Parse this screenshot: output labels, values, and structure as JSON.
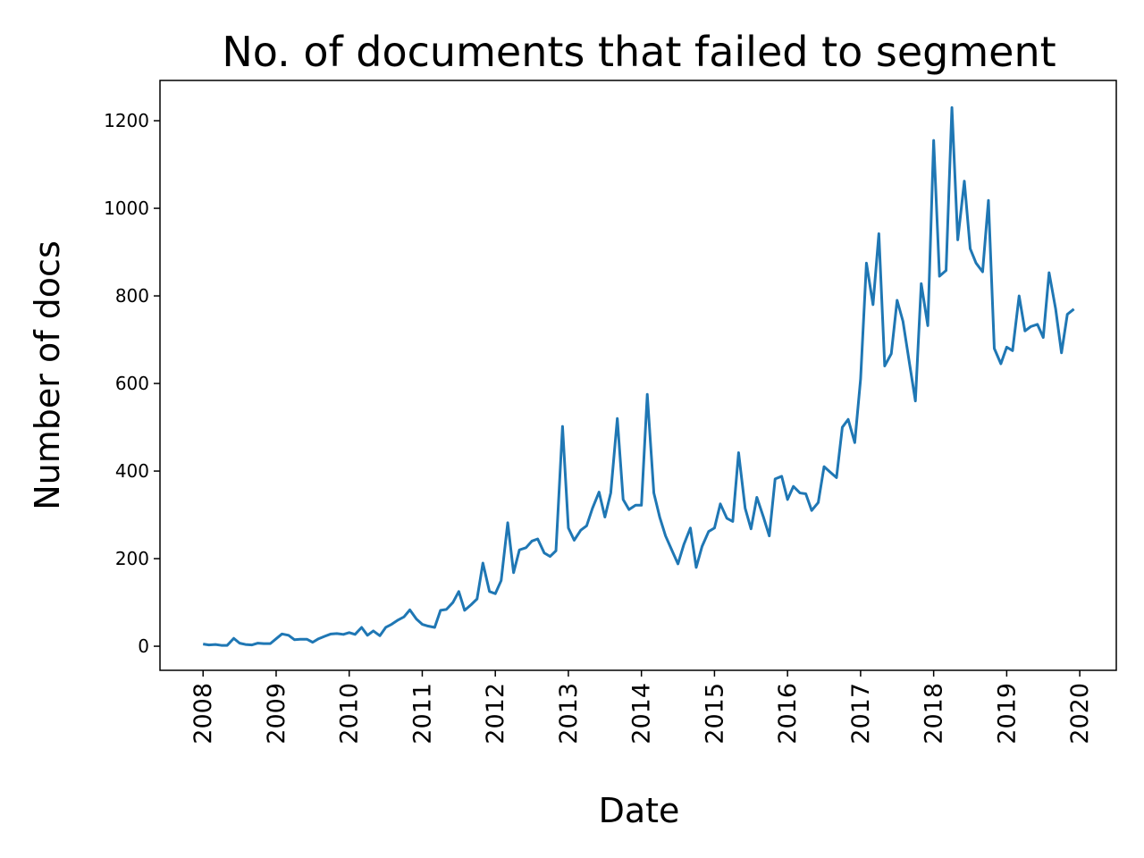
{
  "chart_data": {
    "type": "line",
    "title": "No. of documents that failed to segment",
    "xlabel": "Date",
    "ylabel": "Number of docs",
    "x": [
      2008.0,
      2008.08,
      2008.17,
      2008.25,
      2008.33,
      2008.42,
      2008.5,
      2008.58,
      2008.67,
      2008.75,
      2008.83,
      2008.92,
      2009.0,
      2009.08,
      2009.17,
      2009.25,
      2009.33,
      2009.42,
      2009.5,
      2009.58,
      2009.67,
      2009.75,
      2009.83,
      2009.92,
      2010.0,
      2010.08,
      2010.17,
      2010.25,
      2010.33,
      2010.42,
      2010.5,
      2010.58,
      2010.67,
      2010.75,
      2010.83,
      2010.92,
      2011.0,
      2011.08,
      2011.17,
      2011.25,
      2011.33,
      2011.42,
      2011.5,
      2011.58,
      2011.67,
      2011.75,
      2011.83,
      2011.92,
      2012.0,
      2012.08,
      2012.17,
      2012.25,
      2012.33,
      2012.42,
      2012.5,
      2012.58,
      2012.67,
      2012.75,
      2012.83,
      2012.92,
      2013.0,
      2013.08,
      2013.17,
      2013.25,
      2013.33,
      2013.42,
      2013.5,
      2013.58,
      2013.67,
      2013.75,
      2013.83,
      2013.92,
      2014.0,
      2014.08,
      2014.17,
      2014.25,
      2014.33,
      2014.42,
      2014.5,
      2014.58,
      2014.67,
      2014.75,
      2014.83,
      2014.92,
      2015.0,
      2015.08,
      2015.17,
      2015.25,
      2015.33,
      2015.42,
      2015.5,
      2015.58,
      2015.67,
      2015.75,
      2015.83,
      2015.92,
      2016.0,
      2016.08,
      2016.17,
      2016.25,
      2016.33,
      2016.42,
      2016.5,
      2016.58,
      2016.67,
      2016.75,
      2016.83,
      2016.92,
      2017.0,
      2017.08,
      2017.17,
      2017.25,
      2017.33,
      2017.42,
      2017.5,
      2017.58,
      2017.67,
      2017.75,
      2017.83,
      2017.92,
      2018.0,
      2018.08,
      2018.17,
      2018.25,
      2018.33,
      2018.42,
      2018.5,
      2018.58,
      2018.67,
      2018.75,
      2018.83,
      2018.92,
      2019.0,
      2019.08,
      2019.17,
      2019.25,
      2019.33,
      2019.42,
      2019.5,
      2019.58,
      2019.67,
      2019.75,
      2019.83,
      2019.92
    ],
    "series": [
      {
        "color": "#1f77b4",
        "values": [
          5,
          3,
          4,
          2,
          2,
          18,
          7,
          4,
          3,
          7,
          6,
          6,
          17,
          28,
          25,
          15,
          16,
          16,
          9,
          17,
          23,
          28,
          29,
          27,
          31,
          27,
          43,
          25,
          35,
          24,
          43,
          50,
          60,
          67,
          83,
          62,
          50,
          46,
          43,
          82,
          84,
          100,
          125,
          82,
          95,
          108,
          190,
          125,
          120,
          150,
          282,
          168,
          220,
          225,
          240,
          245,
          213,
          205,
          218,
          502,
          270,
          242,
          265,
          275,
          315,
          352,
          295,
          350,
          520,
          335,
          312,
          322,
          322,
          575,
          350,
          295,
          252,
          218,
          188,
          232,
          270,
          180,
          228,
          262,
          270,
          325,
          292,
          285,
          442,
          315,
          268,
          340,
          295,
          252,
          382,
          388,
          335,
          365,
          350,
          348,
          310,
          328,
          410,
          398,
          385,
          500,
          518,
          465,
          610,
          875,
          780,
          942,
          640,
          668,
          790,
          742,
          645,
          560,
          828,
          732,
          1155,
          845,
          858,
          1230,
          928,
          1062,
          908,
          875,
          855,
          1018,
          680,
          645,
          683,
          675,
          800,
          720,
          730,
          735,
          705,
          853,
          770,
          670,
          758,
          770
        ]
      }
    ],
    "xlim": [
      2007.41,
      2020.5
    ],
    "xticks": [
      2008,
      2009,
      2010,
      2011,
      2012,
      2013,
      2014,
      2015,
      2016,
      2017,
      2018,
      2019,
      2020
    ],
    "ylim": [
      -55,
      1292
    ],
    "yticks": [
      0,
      200,
      400,
      600,
      800,
      1000,
      1200
    ]
  }
}
